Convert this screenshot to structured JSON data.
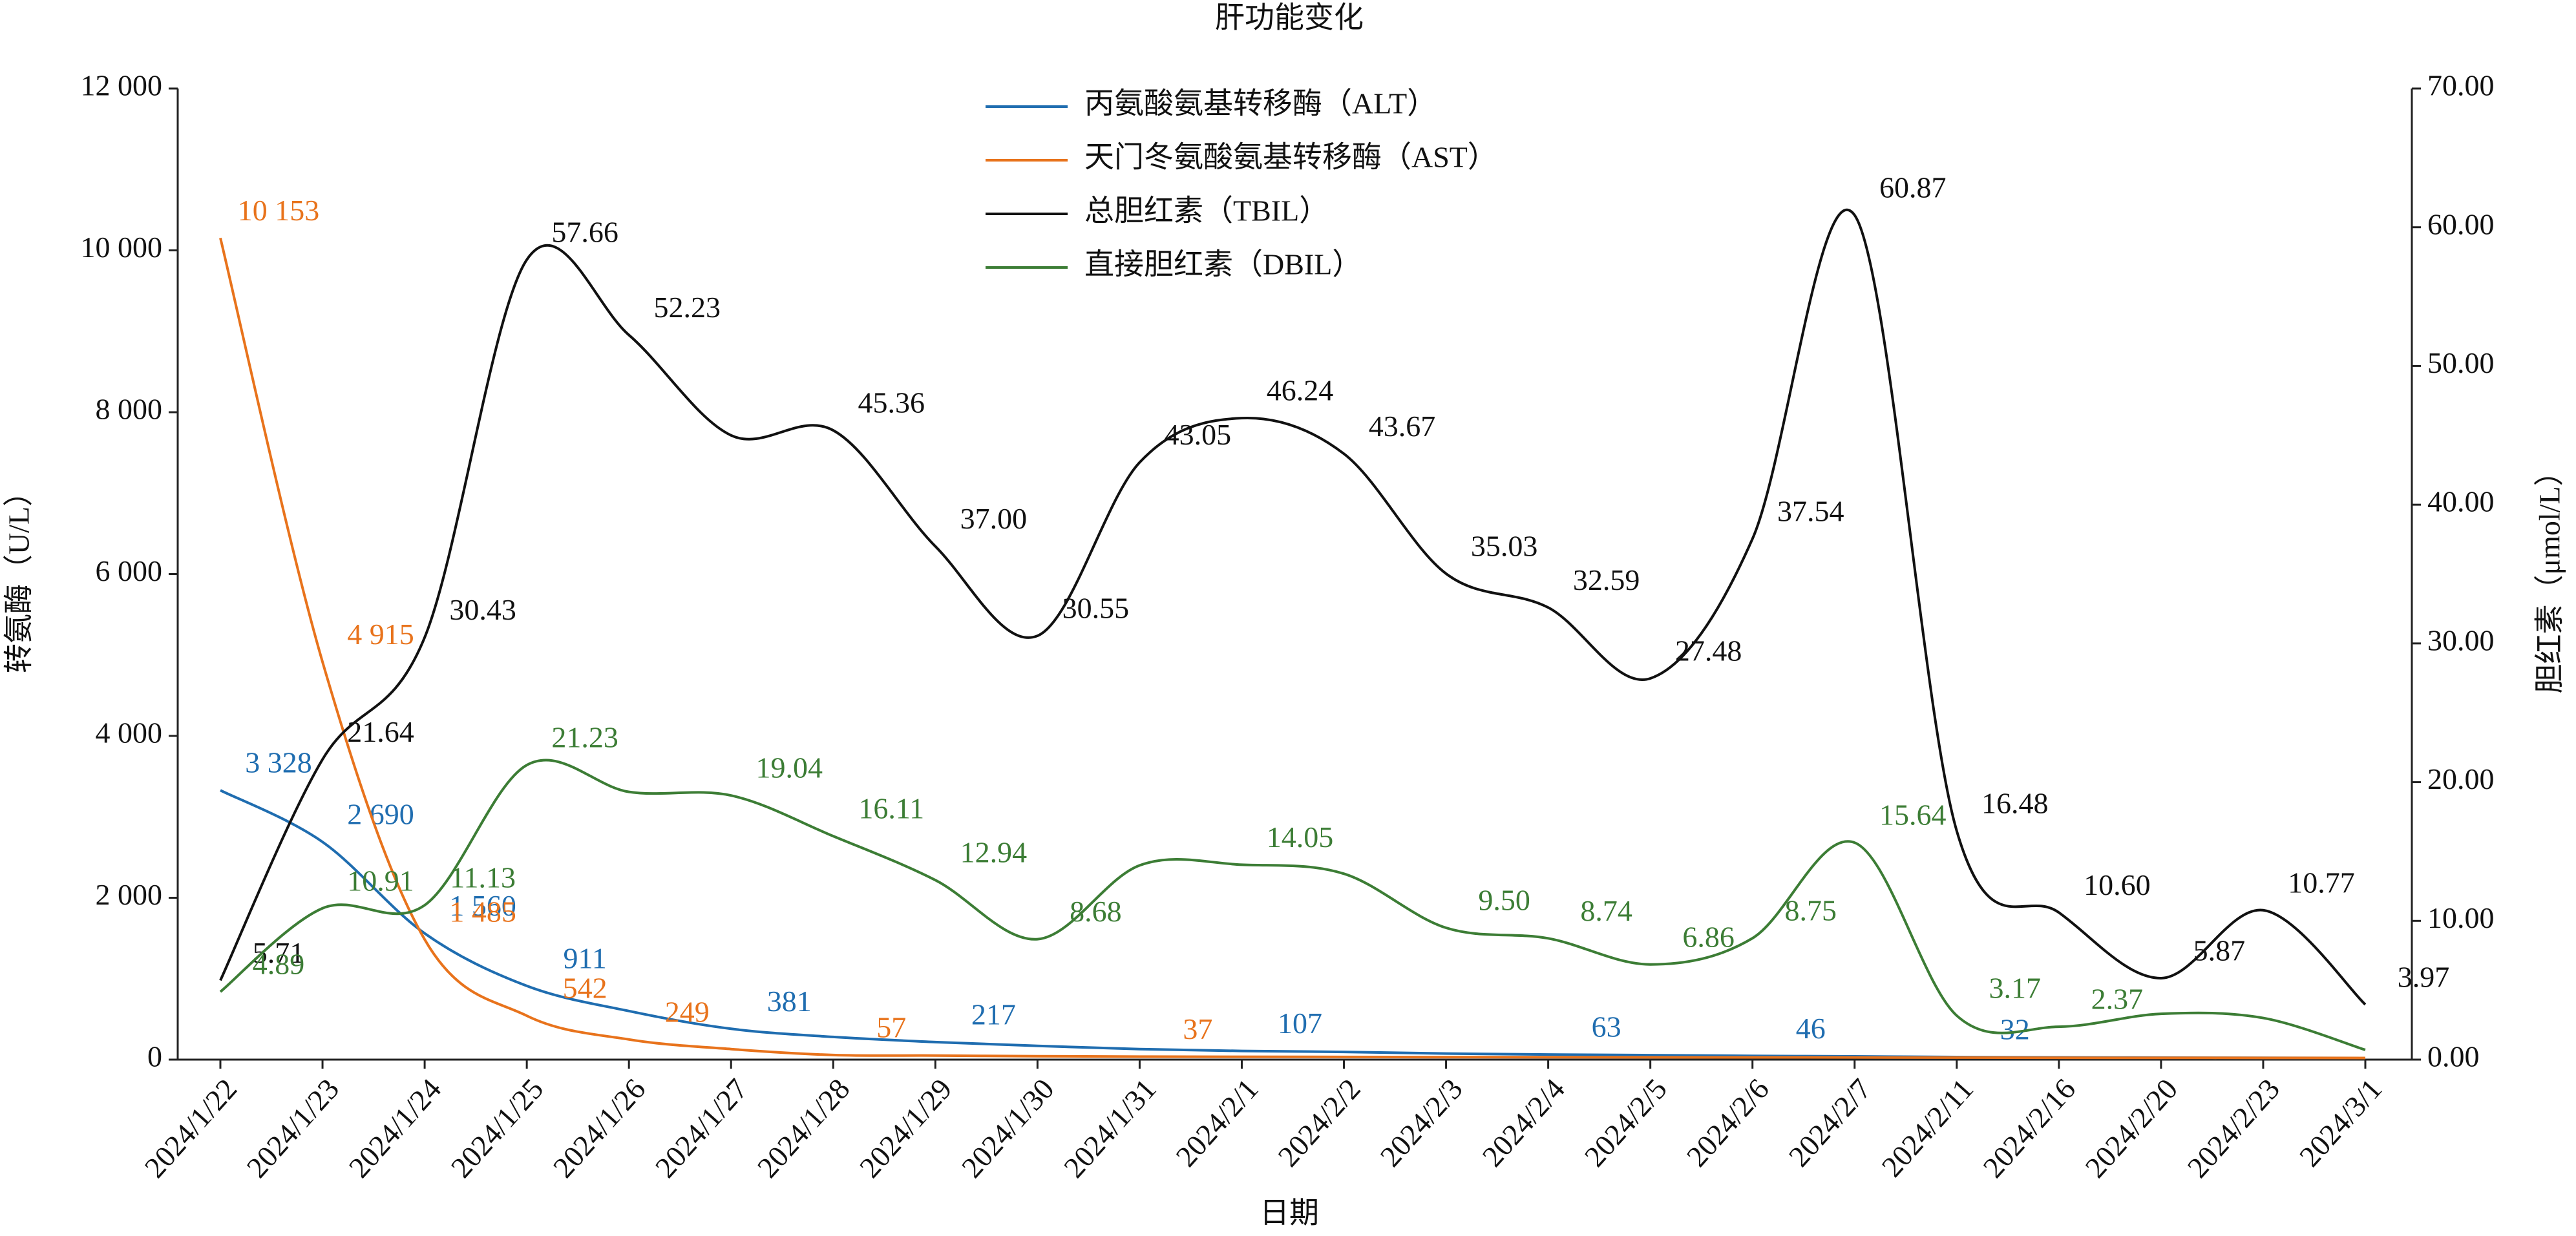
{
  "chart_data": {
    "type": "line",
    "title": "肝功能变化",
    "x_label": "日期",
    "y_label": "转氨酶（U/L）",
    "y2_label": "胆红素（μmol/L）",
    "categories": [
      "2024/1/22",
      "2024/1/23",
      "2024/1/24",
      "2024/1/25",
      "2024/1/26",
      "2024/1/27",
      "2024/1/28",
      "2024/1/29",
      "2024/1/30",
      "2024/1/31",
      "2024/2/1",
      "2024/2/2",
      "2024/2/3",
      "2024/2/4",
      "2024/2/5",
      "2024/2/6",
      "2024/2/7",
      "2024/2/11",
      "2024/2/16",
      "2024/2/20",
      "2024/2/23",
      "2024/3/1"
    ],
    "series": [
      {
        "name": "丙氨酸氨基转移酶（ALT）",
        "color": "#1f6db0",
        "values": [
          3328,
          2690,
          1560,
          911,
          600,
          381,
          280,
          217,
          170,
          130,
          107,
          95,
          75,
          63,
          55,
          46,
          40,
          32,
          28,
          25,
          22,
          20
        ],
        "value_labels": [
          "3 328",
          "2 690",
          "1 560",
          "911",
          null,
          "381",
          null,
          "217",
          null,
          null,
          "107",
          null,
          null,
          "63",
          null,
          "46",
          null,
          "32",
          null,
          null,
          null,
          null
        ]
      },
      {
        "name": "天门冬氨酸氨基转移酶（AST）",
        "color": "#e8731c",
        "values": [
          10153,
          4915,
          1485,
          542,
          249,
          130,
          57,
          50,
          42,
          37,
          35,
          33,
          31,
          30,
          29,
          28,
          27,
          25,
          23,
          22,
          21,
          20
        ],
        "value_labels": [
          "10 153",
          "4 915",
          "1 485",
          "542",
          "249",
          null,
          "57",
          null,
          null,
          "37",
          null,
          null,
          null,
          null,
          null,
          null,
          null,
          null,
          null,
          null,
          null,
          null
        ]
      },
      {
        "name": "总胆红素（TBIL）",
        "color": "#111111",
        "axis": "y2",
        "values": [
          5.71,
          21.64,
          30.43,
          57.66,
          52.23,
          45.0,
          45.36,
          37.0,
          30.55,
          43.05,
          46.24,
          43.67,
          35.03,
          32.59,
          27.48,
          37.54,
          60.87,
          16.48,
          10.6,
          5.87,
          10.77,
          3.97
        ],
        "value_labels": [
          "5.71",
          "21.64",
          "30.43",
          "57.66",
          "52.23",
          null,
          "45.36",
          "37.00",
          "30.55",
          "43.05",
          "46.24",
          "43.67",
          "35.03",
          "32.59",
          "27.48",
          "37.54",
          "60.87",
          "16.48",
          "10.60",
          "5.87",
          "10.77",
          "3.97"
        ]
      },
      {
        "name": "直接胆红素（DBIL）",
        "color": "#3c7d35",
        "axis": "y2",
        "values": [
          4.89,
          10.91,
          11.13,
          21.23,
          19.3,
          19.04,
          16.11,
          12.94,
          8.68,
          14.0,
          14.05,
          13.4,
          9.5,
          8.74,
          6.86,
          8.75,
          15.64,
          3.17,
          2.37,
          3.3,
          3.0,
          0.7
        ],
        "value_labels": [
          "4.89",
          "10.91",
          "11.13",
          "21.23",
          null,
          "19.04",
          "16.11",
          "12.94",
          "8.68",
          null,
          "14.05",
          null,
          "9.50",
          "8.74",
          "6.86",
          "8.75",
          "15.64",
          "3.17",
          "2.37",
          null,
          null,
          null
        ]
      }
    ],
    "ylim": [
      0,
      12000
    ],
    "yticks": [
      0,
      {
        "value": 2000,
        "label": "2 000"
      },
      {
        "value": 4000,
        "label": "4 000"
      },
      {
        "value": 6000,
        "label": "6 000"
      },
      {
        "value": 8000,
        "label": "8 000"
      },
      {
        "value": 10000,
        "label": "10 000"
      },
      {
        "value": 12000,
        "label": "12 000"
      }
    ],
    "y2lim": [
      0,
      70
    ],
    "y2ticks": [
      {
        "value": 0,
        "label": "0.00"
      },
      {
        "value": 10,
        "label": "10.00"
      },
      {
        "value": 20,
        "label": "20.00"
      },
      {
        "value": 30,
        "label": "30.00"
      },
      {
        "value": 40,
        "label": "40.00"
      },
      {
        "value": 50,
        "label": "50.00"
      },
      {
        "value": 60,
        "label": "60.00"
      },
      {
        "value": 70,
        "label": "70.00"
      }
    ],
    "legend": "top"
  }
}
